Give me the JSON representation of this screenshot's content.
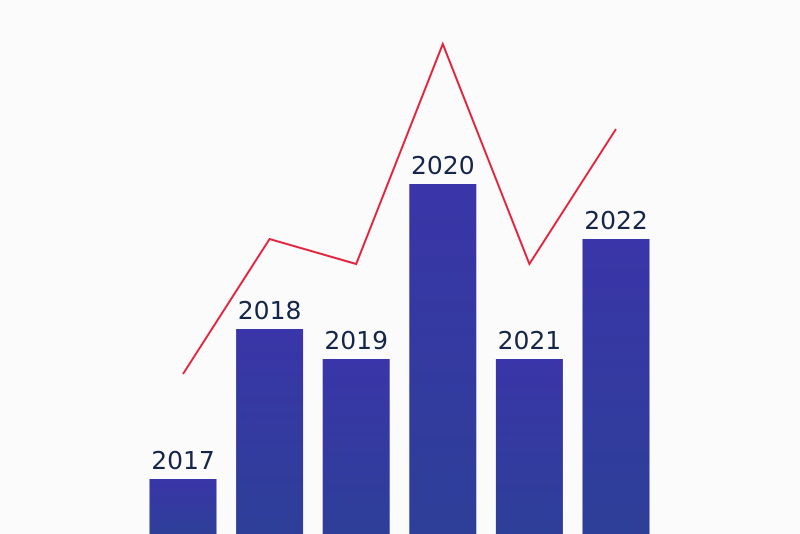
{
  "chart_data": {
    "type": "bar",
    "categories": [
      "2017",
      "2018",
      "2019",
      "2020",
      "2021",
      "2022"
    ],
    "series": [
      {
        "type": "bar",
        "color": "#3a3ea6",
        "values": [
          11,
          41,
          35,
          70,
          35,
          59
        ]
      },
      {
        "type": "line",
        "color": "#e3223c",
        "values": [
          32,
          59,
          54,
          98,
          54,
          81
        ]
      }
    ],
    "ylim": [
      0,
      100
    ]
  }
}
